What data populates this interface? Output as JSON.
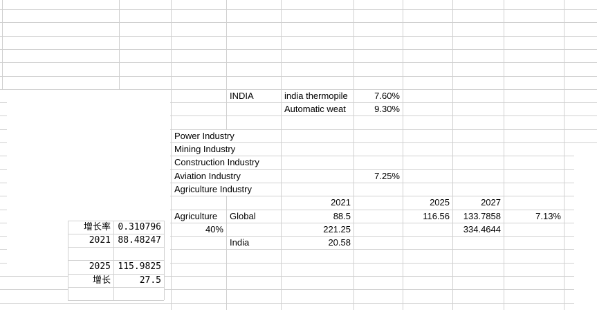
{
  "app": {
    "kind": "spreadsheet-worksheet"
  },
  "colors": {
    "background": "#ffffff",
    "gridline": "#d0d0d0",
    "text": "#000000"
  },
  "upper_block": {
    "region_label": "INDIA",
    "rows": [
      {
        "name": "india thermopile",
        "value": "7.60%"
      },
      {
        "name": "Automatic weat",
        "value": "9.30%"
      }
    ]
  },
  "industry_list": {
    "items": [
      {
        "label": "Power Industry",
        "value": ""
      },
      {
        "label": "Mining Industry",
        "value": ""
      },
      {
        "label": "Construction Industry",
        "value": ""
      },
      {
        "label": "Aviation Industry",
        "value": "7.25%"
      },
      {
        "label": "Agriculture Industry",
        "value": ""
      }
    ]
  },
  "agriculture_table": {
    "year_headers": [
      "2021",
      "2025",
      "2027"
    ],
    "rows": [
      {
        "sector": "Agriculture",
        "scope": "Global",
        "y2021": "88.5",
        "y2025": "116.56",
        "y2027": "133.7858",
        "growth": "7.13%"
      },
      {
        "sector": "40%",
        "scope": "",
        "y2021": "221.25",
        "y2025": "",
        "y2027": "334.4644",
        "growth": ""
      },
      {
        "sector": "",
        "scope": "India",
        "y2021": "20.58",
        "y2025": "",
        "y2027": "",
        "growth": ""
      }
    ]
  },
  "growth_panel": {
    "rows": [
      {
        "label": "增长率",
        "value": "0.310796"
      },
      {
        "label": "2021",
        "value": "88.48247"
      },
      {
        "label": "",
        "value": ""
      },
      {
        "label": "2025",
        "value": "115.9825"
      },
      {
        "label": "增长",
        "value": "27.5"
      }
    ]
  }
}
